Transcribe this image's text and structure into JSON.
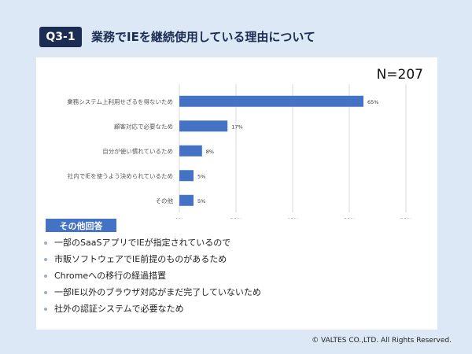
{
  "header": {
    "badge": "Q3-1",
    "title": "業務でIEを継続使用している理由について"
  },
  "chart_data": {
    "type": "bar",
    "orientation": "horizontal",
    "sample_size": "N=207",
    "categories": [
      "業務システム上利用せざるを得ないため",
      "顧客対応で必要なため",
      "自分が使い慣れているため",
      "社内でIEを使うよう決められているため",
      "その他"
    ],
    "values": [
      65,
      17,
      8,
      5,
      5
    ],
    "value_labels": [
      "65%",
      "17%",
      "8%",
      "5%",
      "5%"
    ],
    "xlim": [
      0,
      80
    ],
    "xticks": [
      "0%",
      "20%",
      "40%",
      "60%",
      "80%"
    ],
    "xtick_values": [
      0,
      20,
      40,
      60,
      80
    ],
    "grid": true,
    "bar_color": "#4472c4"
  },
  "other_answers": {
    "label": "その他回答",
    "items": [
      "一部のSaaSアプリでIEが指定されているので",
      "市販ソフトウェアでIE前提のものがあるため",
      "Chromeへの移行の経過措置",
      "一部IE以外のブラウザ対応がまだ完了していないため",
      "社外の認証システムで必要なため"
    ]
  },
  "footer": {
    "copyright": "© VALTES CO.,LTD. All Rights Reserved."
  }
}
